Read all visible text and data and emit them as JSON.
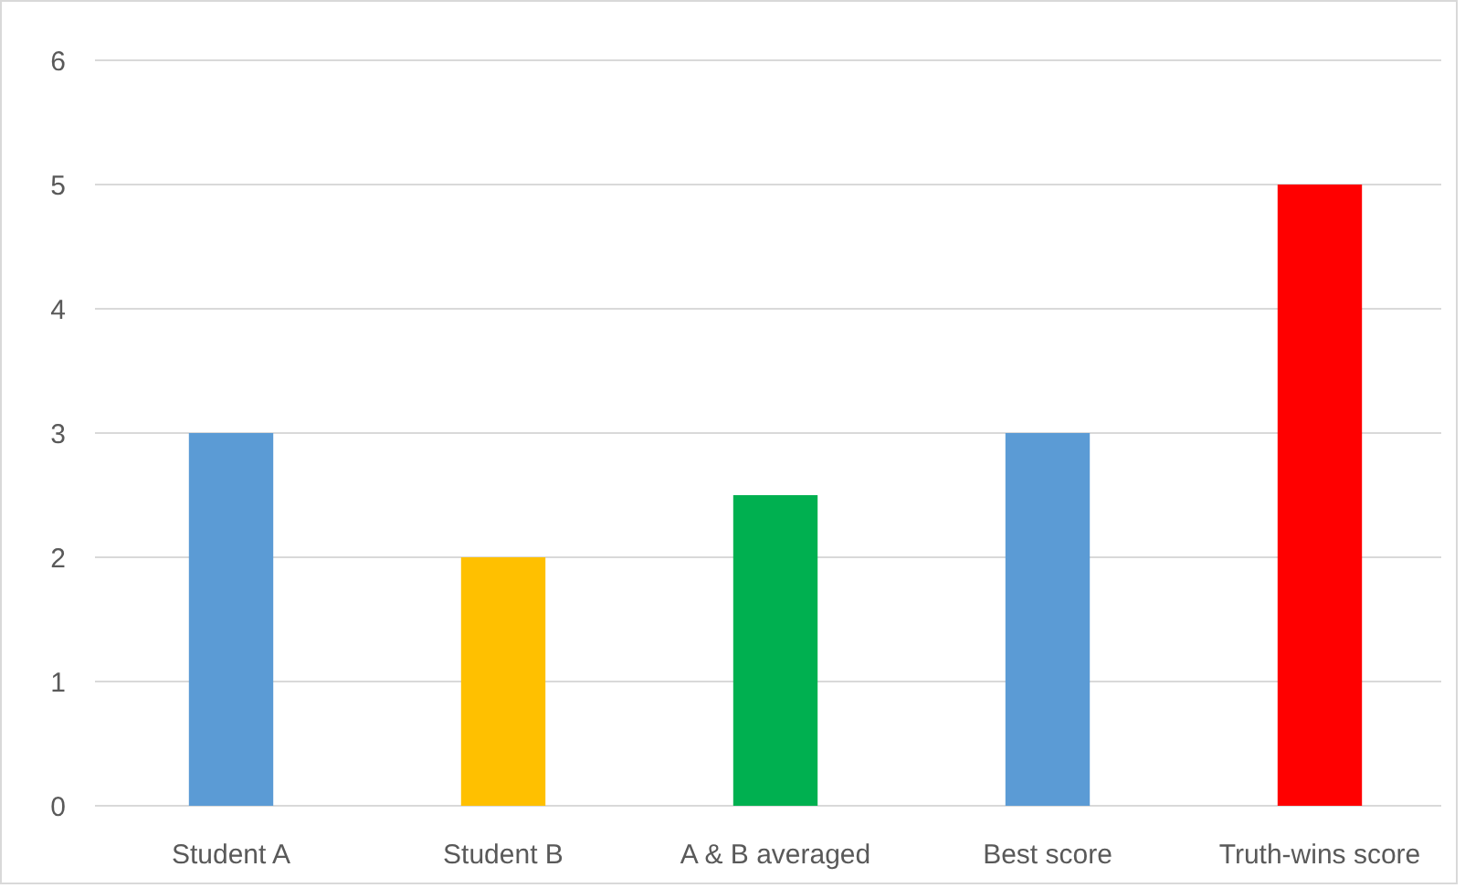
{
  "chart_data": {
    "type": "bar",
    "categories": [
      "Student A",
      "Student B",
      "A & B averaged",
      "Best score",
      "Truth-wins score"
    ],
    "values": [
      3,
      2,
      2.5,
      3,
      5
    ],
    "colors": [
      "#5b9bd5",
      "#ffc000",
      "#00b050",
      "#5b9bd5",
      "#ff0000"
    ],
    "ylim": [
      0,
      6
    ],
    "yticks": [
      0,
      1,
      2,
      3,
      4,
      5,
      6
    ],
    "grid": "y"
  }
}
